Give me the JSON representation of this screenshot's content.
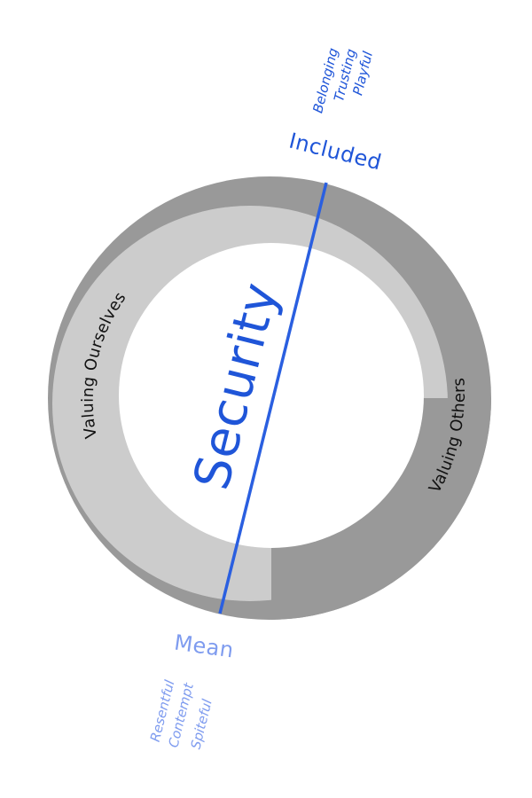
{
  "center_label": "Security",
  "ring_labels": {
    "left": "Valuing Ourselves",
    "right": "Valuing Others"
  },
  "top_pole": {
    "label": "Included",
    "words": [
      "Belonging",
      "Trusting",
      "Playful"
    ]
  },
  "bottom_pole": {
    "label": "Mean",
    "words": [
      "Resentful",
      "Contempt",
      "Spiteful"
    ]
  },
  "colors": {
    "outer_ring": "#999999",
    "inner_ring": "#cccccc",
    "center": "#ffffff",
    "axis_line": "#2a5fe0",
    "top_text": "#1f55d8",
    "bottom_text": "#7f9cef",
    "ring_text": "#111111"
  }
}
